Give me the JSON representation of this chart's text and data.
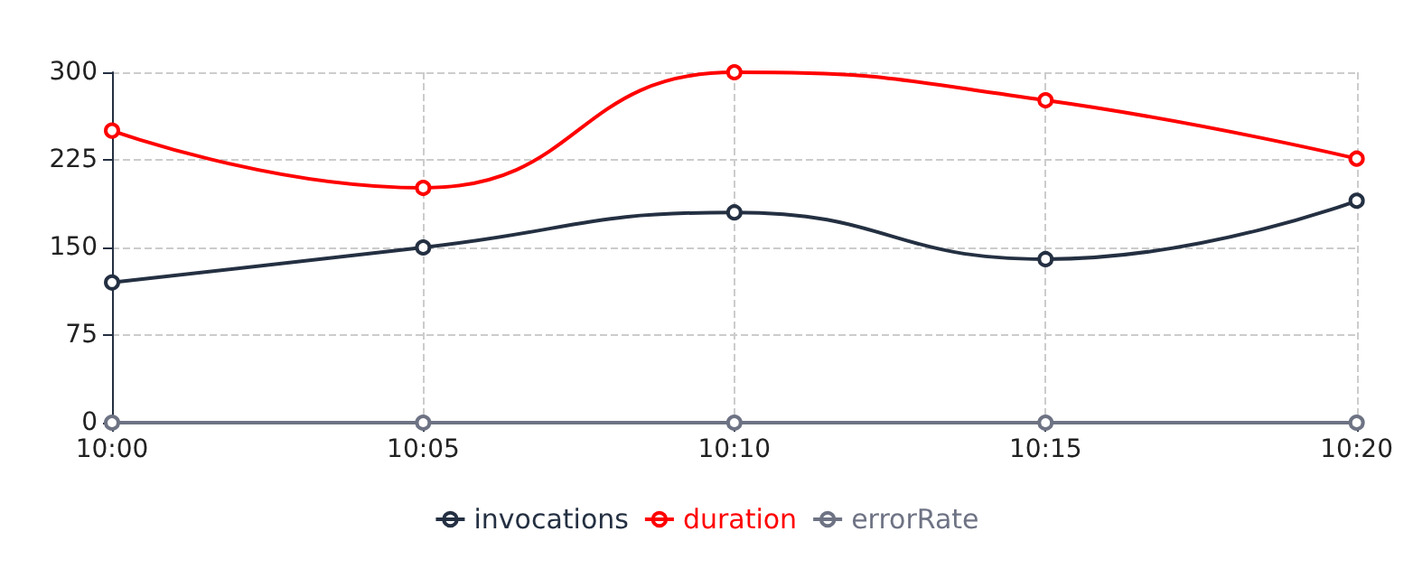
{
  "chart_data": {
    "type": "line",
    "categories": [
      "10:00",
      "10:05",
      "10:10",
      "10:15",
      "10:20"
    ],
    "series": [
      {
        "name": "invocations",
        "color": "#243042",
        "values": [
          120,
          150,
          180,
          140,
          190
        ]
      },
      {
        "name": "duration",
        "color": "#ff0000",
        "values": [
          250,
          201,
          300,
          276,
          226
        ]
      },
      {
        "name": "errorRate",
        "color": "#6e7384",
        "values": [
          0,
          0,
          0,
          0,
          0
        ]
      }
    ],
    "ylim": [
      0,
      300
    ],
    "yticks": [
      0,
      75,
      150,
      225,
      300
    ],
    "grid": true,
    "legend": "bottom",
    "marker": "circle",
    "line_style": "solid"
  }
}
